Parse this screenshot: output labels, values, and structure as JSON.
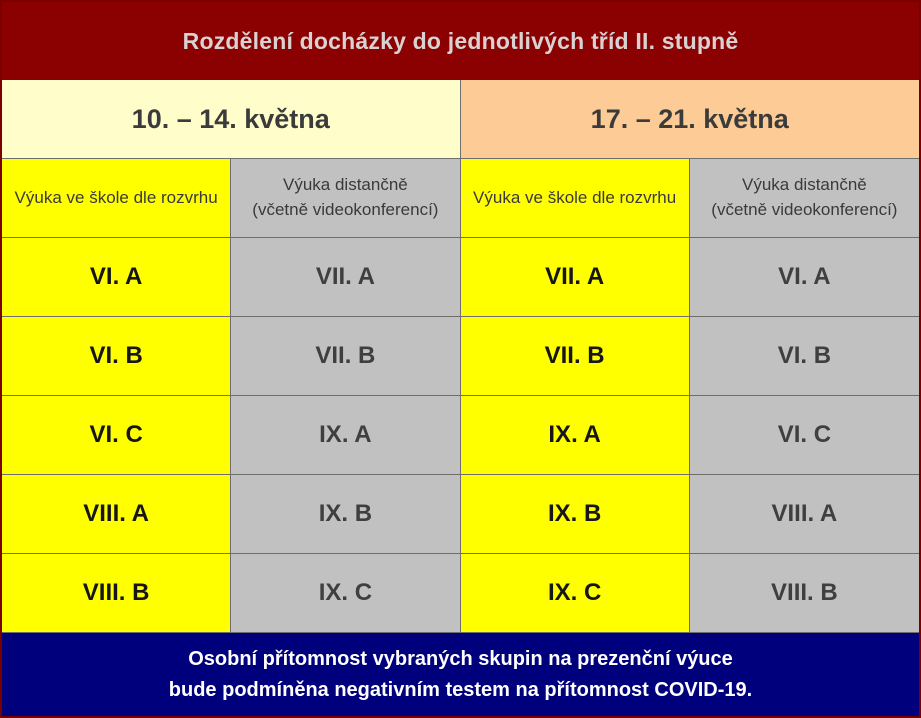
{
  "title": "Rozdělení docházky do jednotlivých tříd II. stupně",
  "weeks": [
    {
      "label": "10. – 14. května"
    },
    {
      "label": "17. – 21. května"
    }
  ],
  "column_headers": {
    "school": "Výuka ve škole dle rozvrhu",
    "distance_line1": "Výuka distančně",
    "distance_line2": "(včetně videokonferencí)"
  },
  "rows": [
    {
      "cells": [
        "VI. A",
        "VII. A",
        "VII. A",
        "VI. A"
      ]
    },
    {
      "cells": [
        "VI. B",
        "VII. B",
        "VII. B",
        "VI. B"
      ]
    },
    {
      "cells": [
        "VI. C",
        "IX. A",
        "IX. A",
        "VI. C"
      ]
    },
    {
      "cells": [
        "VIII. A",
        "IX. B",
        "IX. B",
        "VIII. A"
      ]
    },
    {
      "cells": [
        "VIII. B",
        "IX. C",
        "IX. C",
        "VIII. B"
      ]
    }
  ],
  "footer": {
    "line1": "Osobní přítomnost vybraných skupin na prezenční výuce",
    "line2": "bude podmíněna negativním testem na přítomnost COVID-19."
  },
  "colors": {
    "header_bg": "#8b0000",
    "header_text": "#d9d2d2",
    "week1_bg": "#fffdc9",
    "week2_bg": "#fdcb96",
    "school_bg": "#ffff00",
    "distance_bg": "#c1c1c1",
    "footer_bg": "#00007d",
    "border": "#6e6e6e"
  }
}
